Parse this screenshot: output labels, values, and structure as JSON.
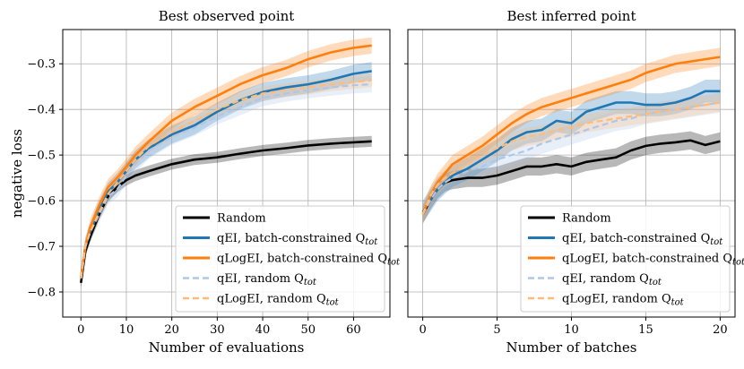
{
  "chart_data": [
    {
      "type": "line",
      "title": "Best observed point",
      "xlabel": "Number of evaluations",
      "ylabel": "negative loss",
      "xlim": [
        -4,
        68
      ],
      "ylim": [
        -0.855,
        -0.225
      ],
      "xticks": [
        0,
        10,
        20,
        30,
        40,
        50,
        60
      ],
      "xtick_labels": [
        "0",
        "10",
        "20",
        "30",
        "40",
        "50",
        "60"
      ],
      "yticks": [
        -0.8,
        -0.7,
        -0.6,
        -0.5,
        -0.4,
        -0.3
      ],
      "ytick_labels": [
        "−0.8",
        "−0.7",
        "−0.6",
        "−0.5",
        "−0.4",
        "−0.3"
      ],
      "grid": true,
      "legend_location": "lower-right",
      "series": [
        {
          "name": "Random",
          "color": "#000000",
          "style": "solid",
          "x": [
            0,
            1,
            2,
            4,
            6,
            8,
            10,
            12,
            15,
            20,
            25,
            30,
            35,
            40,
            45,
            50,
            55,
            60,
            64
          ],
          "y": [
            -0.78,
            -0.71,
            -0.68,
            -0.63,
            -0.59,
            -0.57,
            -0.555,
            -0.545,
            -0.535,
            -0.52,
            -0.51,
            -0.505,
            -0.497,
            -0.49,
            -0.485,
            -0.479,
            -0.475,
            -0.472,
            -0.47
          ],
          "band": 0.012
        },
        {
          "name": "qEI, batch-constrained Q_tot",
          "color": "#1f77b4",
          "style": "solid",
          "x": [
            0,
            1,
            2,
            4,
            6,
            8,
            10,
            12,
            15,
            20,
            25,
            30,
            35,
            40,
            45,
            50,
            55,
            60,
            64
          ],
          "y": [
            -0.77,
            -0.7,
            -0.67,
            -0.62,
            -0.58,
            -0.56,
            -0.535,
            -0.51,
            -0.485,
            -0.455,
            -0.435,
            -0.405,
            -0.38,
            -0.362,
            -0.352,
            -0.345,
            -0.335,
            -0.322,
            -0.316
          ],
          "band": 0.02
        },
        {
          "name": "qLogEI, batch-constrained Q_tot",
          "color": "#ff7f0e",
          "style": "solid",
          "x": [
            0,
            1,
            2,
            4,
            6,
            8,
            10,
            12,
            15,
            20,
            25,
            30,
            35,
            40,
            45,
            50,
            55,
            60,
            64
          ],
          "y": [
            -0.77,
            -0.7,
            -0.66,
            -0.61,
            -0.57,
            -0.55,
            -0.525,
            -0.5,
            -0.47,
            -0.425,
            -0.395,
            -0.37,
            -0.345,
            -0.325,
            -0.31,
            -0.29,
            -0.275,
            -0.265,
            -0.26
          ],
          "band": 0.018
        },
        {
          "name": "qEI, random Q_tot",
          "color": "#aec7e8",
          "style": "dashed",
          "x": [
            0,
            1,
            2,
            4,
            6,
            8,
            10,
            12,
            15,
            20,
            25,
            30,
            35,
            40,
            45,
            50,
            55,
            60,
            64
          ],
          "y": [
            -0.77,
            -0.7,
            -0.67,
            -0.63,
            -0.59,
            -0.575,
            -0.545,
            -0.52,
            -0.49,
            -0.46,
            -0.44,
            -0.415,
            -0.395,
            -0.375,
            -0.365,
            -0.358,
            -0.352,
            -0.347,
            -0.345
          ],
          "band": 0.018
        },
        {
          "name": "qLogEI, random Q_tot",
          "color": "#ffbb78",
          "style": "dashed",
          "x": [
            0,
            1,
            2,
            4,
            6,
            8,
            10,
            12,
            15,
            20,
            25,
            30,
            35,
            40,
            45,
            50,
            55,
            60,
            64
          ],
          "y": [
            -0.77,
            -0.7,
            -0.67,
            -0.625,
            -0.585,
            -0.56,
            -0.535,
            -0.51,
            -0.48,
            -0.45,
            -0.425,
            -0.4,
            -0.38,
            -0.365,
            -0.358,
            -0.352,
            -0.345,
            -0.34,
            -0.336
          ],
          "band": 0.015
        }
      ]
    },
    {
      "type": "line",
      "title": "Best inferred point",
      "xlabel": "Number of batches",
      "ylabel": "",
      "xlim": [
        -1,
        21
      ],
      "ylim": [
        -0.855,
        -0.225
      ],
      "xticks": [
        0,
        5,
        10,
        15,
        20
      ],
      "xtick_labels": [
        "0",
        "5",
        "10",
        "15",
        "20"
      ],
      "yticks": [
        -0.8,
        -0.7,
        -0.6,
        -0.5,
        -0.4,
        -0.3
      ],
      "grid": true,
      "legend_location": "lower-right",
      "series": [
        {
          "name": "Random",
          "color": "#000000",
          "style": "solid",
          "x": [
            0,
            0.5,
            1,
            1.5,
            2,
            3,
            4,
            5,
            6,
            7,
            8,
            9,
            10,
            11,
            12,
            13,
            14,
            15,
            16,
            17,
            18,
            19,
            20
          ],
          "y": [
            -0.63,
            -0.6,
            -0.575,
            -0.56,
            -0.555,
            -0.55,
            -0.55,
            -0.545,
            -0.535,
            -0.525,
            -0.525,
            -0.52,
            -0.525,
            -0.515,
            -0.51,
            -0.505,
            -0.49,
            -0.48,
            -0.475,
            -0.472,
            -0.468,
            -0.478,
            -0.47
          ],
          "band": 0.02
        },
        {
          "name": "qEI, batch-constrained Q_tot",
          "color": "#1f77b4",
          "style": "solid",
          "x": [
            0,
            0.5,
            1,
            1.5,
            2,
            3,
            4,
            5,
            6,
            7,
            8,
            9,
            10,
            11,
            12,
            13,
            14,
            15,
            16,
            17,
            18,
            19,
            20
          ],
          "y": [
            -0.625,
            -0.6,
            -0.575,
            -0.56,
            -0.545,
            -0.53,
            -0.51,
            -0.49,
            -0.465,
            -0.45,
            -0.445,
            -0.425,
            -0.43,
            -0.405,
            -0.395,
            -0.385,
            -0.385,
            -0.39,
            -0.39,
            -0.385,
            -0.375,
            -0.36,
            -0.36
          ],
          "band": 0.025
        },
        {
          "name": "qLogEI, batch-constrained Q_tot",
          "color": "#ff7f0e",
          "style": "solid",
          "x": [
            0,
            0.5,
            1,
            1.5,
            2,
            3,
            4,
            5,
            6,
            7,
            8,
            9,
            10,
            11,
            12,
            13,
            14,
            15,
            16,
            17,
            18,
            19,
            20
          ],
          "y": [
            -0.63,
            -0.59,
            -0.56,
            -0.54,
            -0.52,
            -0.5,
            -0.48,
            -0.455,
            -0.43,
            -0.41,
            -0.395,
            -0.385,
            -0.375,
            -0.365,
            -0.355,
            -0.345,
            -0.335,
            -0.32,
            -0.31,
            -0.3,
            -0.295,
            -0.29,
            -0.285
          ],
          "band": 0.02
        },
        {
          "name": "qEI, random Q_tot",
          "color": "#aec7e8",
          "style": "dashed",
          "x": [
            0,
            0.5,
            1,
            1.5,
            2,
            3,
            4,
            5,
            6,
            7,
            8,
            9,
            10,
            11,
            12,
            13,
            14,
            15,
            16,
            17,
            18,
            19,
            20
          ],
          "y": [
            -0.63,
            -0.6,
            -0.575,
            -0.56,
            -0.55,
            -0.535,
            -0.525,
            -0.51,
            -0.5,
            -0.49,
            -0.475,
            -0.465,
            -0.455,
            -0.445,
            -0.435,
            -0.425,
            -0.42,
            -0.41,
            -0.405,
            -0.4,
            -0.395,
            -0.39,
            -0.385
          ],
          "band": 0.022
        },
        {
          "name": "qLogEI, random Q_tot",
          "color": "#ffbb78",
          "style": "dashed",
          "x": [
            0,
            0.5,
            1,
            1.5,
            2,
            3,
            4,
            5,
            6,
            7,
            8,
            9,
            10,
            11,
            12,
            13,
            14,
            15,
            16,
            17,
            18,
            19,
            20
          ],
          "y": [
            -0.63,
            -0.59,
            -0.565,
            -0.55,
            -0.54,
            -0.52,
            -0.5,
            -0.485,
            -0.47,
            -0.46,
            -0.455,
            -0.445,
            -0.44,
            -0.43,
            -0.425,
            -0.42,
            -0.415,
            -0.41,
            -0.405,
            -0.4,
            -0.395,
            -0.39,
            -0.385
          ],
          "band": 0.02
        }
      ]
    }
  ],
  "legend": {
    "entries": [
      {
        "label": "Random",
        "sub": "",
        "color": "#000000",
        "style": "solid"
      },
      {
        "label": "qEI, batch-constrained Q",
        "sub": "tot",
        "color": "#1f77b4",
        "style": "solid"
      },
      {
        "label": "qLogEI, batch-constrained Q",
        "sub": "tot",
        "color": "#ff7f0e",
        "style": "solid"
      },
      {
        "label": "qEI, random Q",
        "sub": "tot",
        "color": "#aec7e8",
        "style": "dashed"
      },
      {
        "label": "qLogEI, random Q",
        "sub": "tot",
        "color": "#ffbb78",
        "style": "dashed"
      }
    ]
  }
}
